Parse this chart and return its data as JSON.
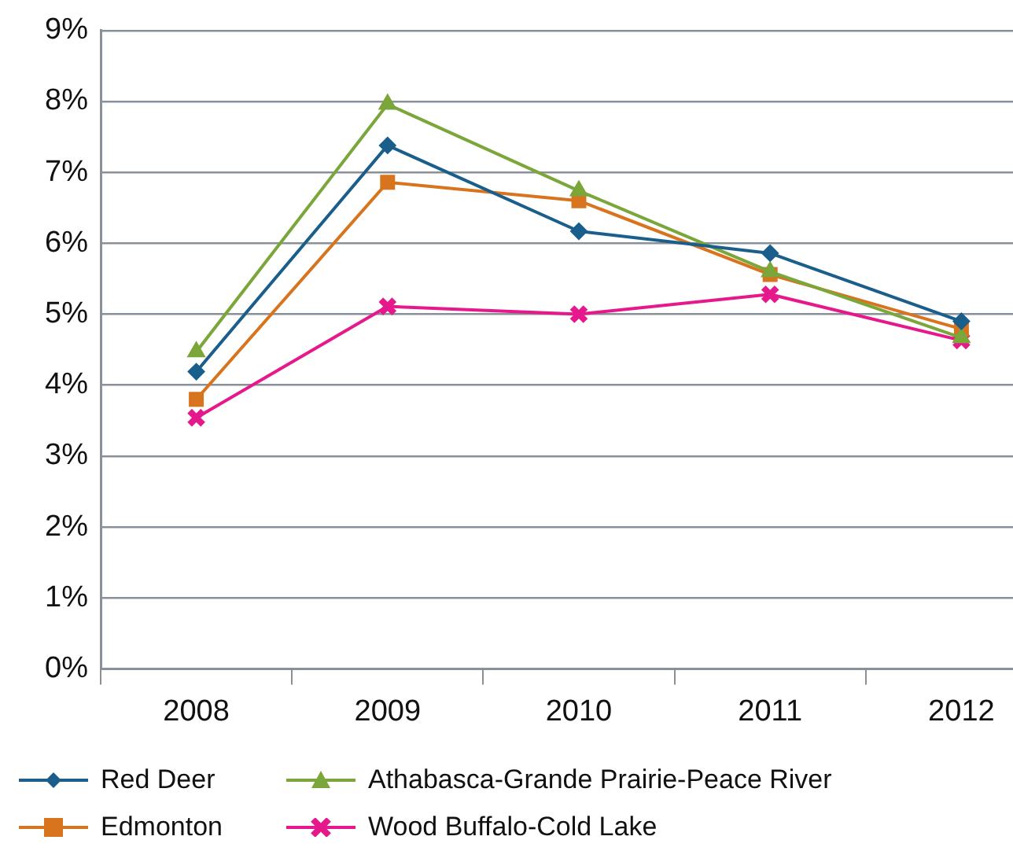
{
  "chart_data": {
    "type": "line",
    "categories": [
      "2008",
      "2009",
      "2010",
      "2011",
      "2012"
    ],
    "series": [
      {
        "name": "Red Deer",
        "color": "#1a5e8c",
        "marker": "diamond",
        "values": [
          4.19,
          7.38,
          6.17,
          5.86,
          4.9
        ]
      },
      {
        "name": "Athabasca-Grande Prairie-Peace River",
        "color": "#7aa63a",
        "marker": "triangle",
        "values": [
          4.47,
          7.96,
          6.74,
          5.6,
          4.67
        ]
      },
      {
        "name": "Edmonton",
        "color": "#d8731e",
        "marker": "square",
        "values": [
          3.8,
          6.86,
          6.6,
          5.56,
          4.79
        ]
      },
      {
        "name": "Wood Buffalo-Cold Lake",
        "color": "#e6198c",
        "marker": "cross",
        "values": [
          3.54,
          5.11,
          5.0,
          5.28,
          4.63
        ]
      }
    ],
    "ylim": [
      0,
      9
    ],
    "yticks": [
      {
        "value": 0,
        "label": "0%"
      },
      {
        "value": 1,
        "label": "1%"
      },
      {
        "value": 2,
        "label": "2%"
      },
      {
        "value": 3,
        "label": "3%"
      },
      {
        "value": 4,
        "label": "4%"
      },
      {
        "value": 5,
        "label": "5%"
      },
      {
        "value": 6,
        "label": "6%"
      },
      {
        "value": 7,
        "label": "7%"
      },
      {
        "value": 8,
        "label": "8%"
      },
      {
        "value": 9,
        "label": "9%"
      }
    ],
    "grid": "y",
    "legend": "bottom",
    "line_style": "solid"
  }
}
